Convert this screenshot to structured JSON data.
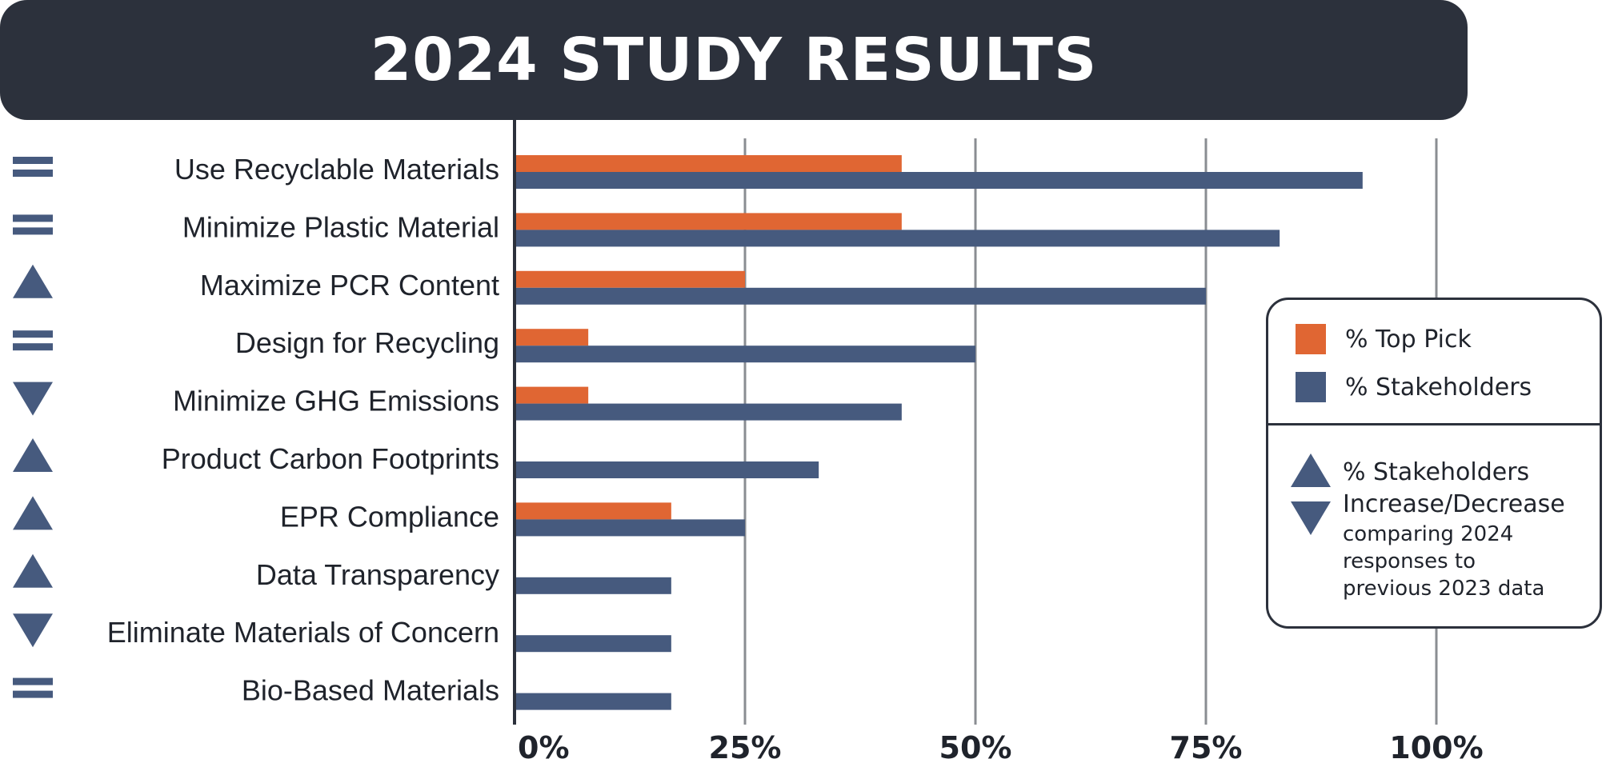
{
  "header": {
    "title": "2024 STUDY RESULTS"
  },
  "colors": {
    "top_pick": "#e06633",
    "stakeholders": "#465a7e",
    "dark": "#2c313c",
    "grid": "#8a8d92"
  },
  "chart_data": {
    "type": "bar",
    "orientation": "horizontal",
    "title": "2024 STUDY RESULTS",
    "categories": [
      "Use Recyclable Materials",
      "Minimize Plastic Material",
      "Maximize PCR Content",
      "Design for Recycling",
      "Minimize GHG Emissions",
      "Product Carbon Footprints",
      "EPR Compliance",
      "Data Transparency",
      "Eliminate Materials of Concern",
      "Bio-Based Materials"
    ],
    "series": [
      {
        "name": "% Top Pick",
        "color": "#e06633",
        "values": [
          42,
          42,
          25,
          8,
          8,
          0,
          17,
          0,
          0,
          0
        ]
      },
      {
        "name": "% Stakeholders",
        "color": "#465a7e",
        "values": [
          92,
          83,
          75,
          50,
          42,
          33,
          25,
          17,
          17,
          17
        ]
      }
    ],
    "trend": [
      "equal",
      "equal",
      "up",
      "equal",
      "down",
      "up",
      "up",
      "up",
      "down",
      "equal"
    ],
    "xlim": [
      0,
      100
    ],
    "xticks": [
      0,
      25,
      50,
      75,
      100
    ],
    "xtick_labels": [
      "0%",
      "25%",
      "50%",
      "75%",
      "100%"
    ],
    "grid": true,
    "legend_position": "right"
  },
  "legend": {
    "top_pick_label": "% Top Pick",
    "stakeholders_label": "% Stakeholders",
    "trend_line1": "% Stakeholders",
    "trend_line2": "Increase/Decrease",
    "trend_note": "comparing 2024 responses to previous 2023 data"
  }
}
